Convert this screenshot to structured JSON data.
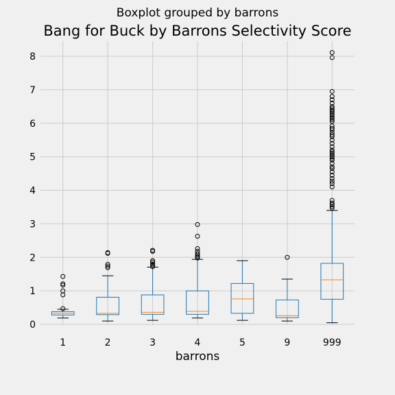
{
  "chart_data": {
    "type": "boxplot",
    "suptitle": "Boxplot grouped by barrons",
    "title": "Bang for Buck by Barrons Selectivity Score",
    "xlabel": "barrons",
    "ylabel": "",
    "ylim": [
      -0.02,
      8.45
    ],
    "yticks": [
      0,
      1,
      2,
      3,
      4,
      5,
      6,
      7,
      8
    ],
    "grid": true,
    "colors": {
      "box": "#1f77b4",
      "median": "#ff7f0e",
      "whisker": "#1f77b4",
      "cap": "#000000",
      "grid": "#cbcbcb",
      "background": "#f0f0f0"
    },
    "categories": [
      "1",
      "2",
      "3",
      "4",
      "5",
      "9",
      "999"
    ],
    "boxes": [
      {
        "category": "1",
        "whislo": 0.19,
        "q1": 0.28,
        "med": 0.33,
        "q3": 0.38,
        "whishi": 0.45,
        "fliers": [
          0.47,
          0.88,
          1.0,
          1.17,
          1.21,
          1.43
        ]
      },
      {
        "category": "2",
        "whislo": 0.1,
        "q1": 0.29,
        "med": 0.33,
        "q3": 0.81,
        "whishi": 1.45,
        "fliers": [
          1.69,
          1.74,
          1.79,
          2.12,
          2.14
        ]
      },
      {
        "category": "3",
        "whislo": 0.12,
        "q1": 0.3,
        "med": 0.36,
        "q3": 0.88,
        "whishi": 1.71,
        "fliers": [
          1.72,
          1.76,
          1.8,
          1.86,
          1.9,
          2.18,
          2.21
        ]
      },
      {
        "category": "4",
        "whislo": 0.19,
        "q1": 0.3,
        "med": 0.39,
        "q3": 1.0,
        "whishi": 1.94,
        "fliers": [
          1.98,
          2.02,
          2.06,
          2.11,
          2.18,
          2.26,
          2.63,
          2.98
        ]
      },
      {
        "category": "5",
        "whislo": 0.12,
        "q1": 0.33,
        "med": 0.76,
        "q3": 1.22,
        "whishi": 1.9,
        "fliers": []
      },
      {
        "category": "9",
        "whislo": 0.1,
        "q1": 0.2,
        "med": 0.26,
        "q3": 0.73,
        "whishi": 1.35,
        "fliers": [
          2.0
        ]
      },
      {
        "category": "999",
        "whislo": 0.05,
        "q1": 0.75,
        "med": 1.33,
        "q3": 1.82,
        "whishi": 3.4,
        "fliers": [
          3.47,
          3.52,
          3.57,
          3.62,
          3.7,
          4.1,
          4.2,
          4.27,
          4.35,
          4.45,
          4.55,
          4.65,
          4.7,
          4.8,
          4.9,
          4.95,
          5.0,
          5.05,
          5.1,
          5.15,
          5.2,
          5.3,
          5.4,
          5.5,
          5.6,
          5.65,
          5.72,
          5.8,
          5.85,
          5.92,
          6.05,
          6.1,
          6.15,
          6.2,
          6.25,
          6.3,
          6.35,
          6.4,
          6.45,
          6.5,
          6.6,
          6.7,
          6.8,
          6.95,
          7.96,
          8.11
        ]
      }
    ]
  }
}
